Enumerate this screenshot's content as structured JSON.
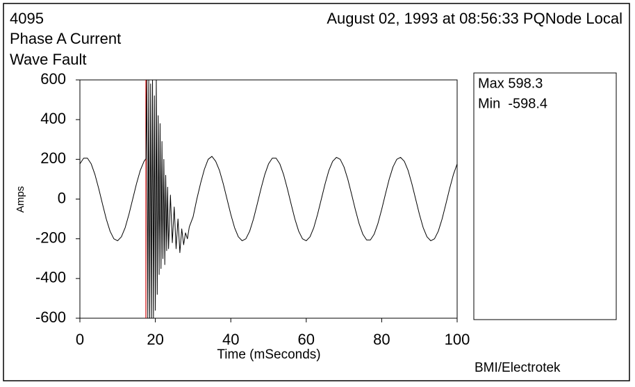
{
  "chart_data": {
    "type": "line",
    "id": "4095",
    "title": "Phase A Current",
    "subtitle": "Wave Fault",
    "header_right": "August 02, 1993 at 08:56:33 PQNode Local",
    "x_label": "Time (mSeconds)",
    "y_label": "Amps",
    "footer": "BMI/Electrotek",
    "stats": [
      "Max 598.3",
      "Min  -598.4"
    ],
    "xlim": [
      0,
      100
    ],
    "xticks": [
      0,
      20,
      40,
      60,
      80,
      100
    ],
    "ylim": [
      -600,
      600
    ],
    "yticks": [
      -600,
      -400,
      -200,
      0,
      200,
      400,
      600
    ],
    "marker_x": 17.5,
    "marker_color": "#cc0000",
    "x": [
      0,
      1,
      2,
      3,
      4,
      5,
      6,
      7,
      8,
      9,
      10,
      11,
      12,
      13,
      14,
      15,
      16,
      17,
      17.5,
      17.75,
      18,
      18.25,
      18.5,
      18.75,
      19,
      19.25,
      19.5,
      19.75,
      20,
      20.25,
      20.5,
      20.75,
      21,
      21.25,
      21.5,
      21.75,
      22,
      22.25,
      22.5,
      22.75,
      23,
      23.25,
      23.5,
      24,
      24.5,
      25,
      25.5,
      26,
      26.5,
      27,
      27.5,
      28,
      28.5,
      29,
      30,
      31,
      32,
      33,
      34,
      35,
      36,
      37,
      38,
      39,
      40,
      41,
      42,
      43,
      44,
      45,
      46,
      47,
      48,
      49,
      50,
      51,
      52,
      53,
      54,
      55,
      56,
      57,
      58,
      59,
      60,
      61,
      62,
      63,
      64,
      65,
      66,
      67,
      68,
      69,
      70,
      71,
      72,
      73,
      74,
      75,
      76,
      77,
      78,
      79,
      80,
      81,
      82,
      83,
      84,
      85,
      86,
      87,
      88,
      89,
      90,
      91,
      92,
      93,
      94,
      95,
      96,
      97,
      98,
      99,
      100
    ],
    "series": [
      {
        "name": "Phase A",
        "color": "#000000",
        "values": [
          177,
          206,
          206,
          177,
          123,
          52,
          -26,
          -101,
          -162,
          -200,
          -210,
          -190,
          -144,
          -77,
          0,
          77,
          144,
          190,
          203,
          600,
          -600,
          600,
          -600,
          580,
          -600,
          600,
          -600,
          520,
          -560,
          600,
          -480,
          420,
          -380,
          380,
          -350,
          290,
          -300,
          200,
          -330,
          120,
          -260,
          60,
          -250,
          20,
          -220,
          -40,
          -250,
          -100,
          -270,
          -150,
          -230,
          -170,
          -200,
          -140,
          -90,
          0,
          80,
          150,
          200,
          215,
          190,
          144,
          77,
          0,
          -77,
          -144,
          -190,
          -210,
          -200,
          -162,
          -101,
          -26,
          52,
          123,
          177,
          206,
          206,
          177,
          123,
          52,
          -26,
          -101,
          -162,
          -200,
          -210,
          -190,
          -144,
          -77,
          0,
          77,
          144,
          190,
          210,
          200,
          162,
          101,
          26,
          -52,
          -123,
          -177,
          -206,
          -206,
          -177,
          -123,
          -52,
          26,
          101,
          162,
          200,
          210,
          190,
          144,
          77,
          0,
          -77,
          -144,
          -190,
          -210,
          -200,
          -162,
          -101,
          -26,
          52,
          123,
          177
        ]
      }
    ]
  }
}
